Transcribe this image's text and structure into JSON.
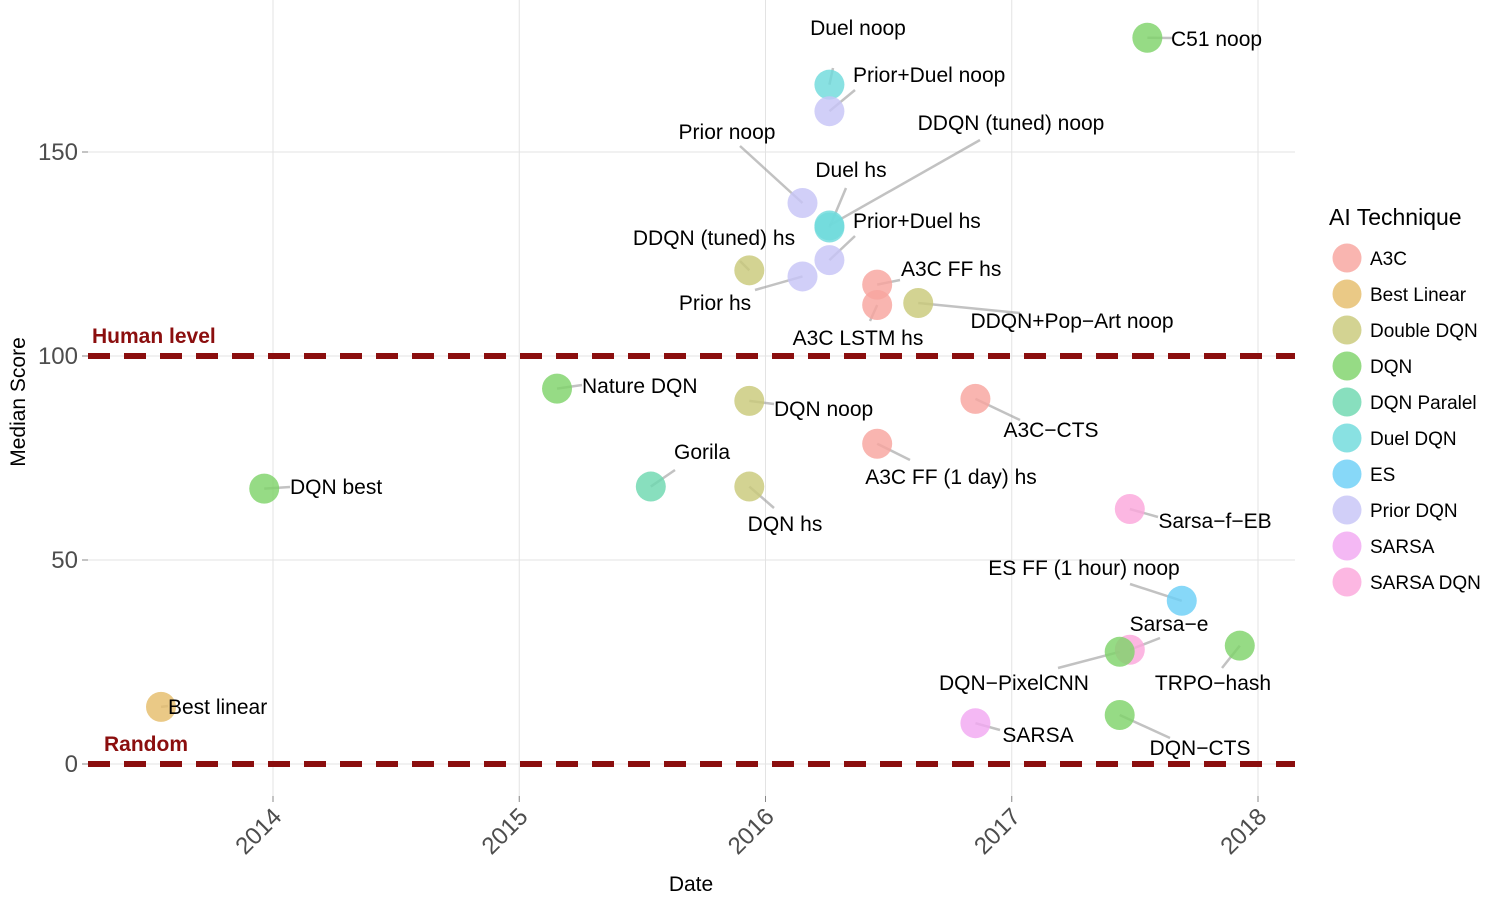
{
  "chart_data": {
    "type": "scatter",
    "xlabel": "Date",
    "ylabel": "Median Score",
    "x_ticks": [
      "2014",
      "2015",
      "2016",
      "2017",
      "2018"
    ],
    "y_ticks": [
      0,
      50,
      100,
      150
    ],
    "ylim": [
      -8,
      178
    ],
    "xlim": [
      "2013-04-15",
      "2018-03-01"
    ],
    "grid": true,
    "legend_title": "AI Technique",
    "legend_position": "right",
    "legend": [
      {
        "name": "A3C",
        "color": "#f8a59f"
      },
      {
        "name": "Best Linear",
        "color": "#e5bd6b"
      },
      {
        "name": "Double DQN",
        "color": "#c9c97a"
      },
      {
        "name": "DQN",
        "color": "#7fd36a"
      },
      {
        "name": "DQN Paralel",
        "color": "#6ed8b0"
      },
      {
        "name": "Duel DQN",
        "color": "#6fdadc"
      },
      {
        "name": "ES",
        "color": "#6ccff6"
      },
      {
        "name": "Prior DQN",
        "color": "#c7c4f7"
      },
      {
        "name": "SARSA",
        "color": "#f2a8f2"
      },
      {
        "name": "SARSA DQN",
        "color": "#fba7dc"
      }
    ],
    "reference_lines": [
      {
        "label": "Human level",
        "y": 100,
        "color": "#8b0e0e"
      },
      {
        "label": "Random",
        "y": 0,
        "color": "#8b0e0e"
      }
    ],
    "points": [
      {
        "label": "Best linear",
        "technique": "Best Linear",
        "date": "2013-07-19",
        "score": 14
      },
      {
        "label": "DQN best",
        "technique": "DQN",
        "date": "2013-12-19",
        "score": 67.5
      },
      {
        "label": "Nature DQN",
        "technique": "DQN",
        "date": "2015-02-26",
        "score": 92
      },
      {
        "label": "Gorila",
        "technique": "DQN Paralel",
        "date": "2015-07-15",
        "score": 68
      },
      {
        "label": "DQN noop",
        "technique": "Double DQN",
        "date": "2015-12-08",
        "score": 89
      },
      {
        "label": "DQN hs",
        "technique": "Double DQN",
        "date": "2015-12-08",
        "score": 68
      },
      {
        "label": "DDQN (tuned) hs",
        "technique": "Double DQN",
        "date": "2015-12-08",
        "score": 121
      },
      {
        "label": "Prior noop",
        "technique": "Prior DQN",
        "date": "2016-02-25",
        "score": 137.5
      },
      {
        "label": "Prior hs",
        "technique": "Prior DQN",
        "date": "2016-02-25",
        "score": 119.5
      },
      {
        "label": "Duel noop",
        "technique": "Duel DQN",
        "date": "2016-04-05",
        "score": 166.5
      },
      {
        "label": "Prior+Duel noop",
        "technique": "Prior DQN",
        "date": "2016-04-05",
        "score": 160
      },
      {
        "label": "DDQN (tuned) noop",
        "technique": "Duel DQN",
        "date": "2016-04-05",
        "score": 132
      },
      {
        "label": "Duel hs",
        "technique": "Duel DQN",
        "date": "2016-04-05",
        "score": 131.5
      },
      {
        "label": "Prior+Duel hs",
        "technique": "Prior DQN",
        "date": "2016-04-05",
        "score": 123.5
      },
      {
        "label": "A3C FF hs",
        "technique": "A3C",
        "date": "2016-06-15",
        "score": 117.5
      },
      {
        "label": "A3C LSTM hs",
        "technique": "A3C",
        "date": "2016-06-15",
        "score": 112.5
      },
      {
        "label": "A3C FF (1 day) hs",
        "technique": "A3C",
        "date": "2016-06-15",
        "score": 78.5
      },
      {
        "label": "DDQN+Pop−Art noop",
        "technique": "Double DQN",
        "date": "2016-08-15",
        "score": 113
      },
      {
        "label": "A3C−CTS",
        "technique": "A3C",
        "date": "2016-11-08",
        "score": 89.5
      },
      {
        "label": "SARSA",
        "technique": "SARSA",
        "date": "2016-11-08",
        "score": 10
      },
      {
        "label": "C51 noop",
        "technique": "DQN",
        "date": "2017-07-21",
        "score": 178
      },
      {
        "label": "Sarsa−f−EB",
        "technique": "SARSA DQN",
        "date": "2017-06-25",
        "score": 62.5
      },
      {
        "label": "ES FF (1 hour) noop",
        "technique": "ES",
        "date": "2017-09-10",
        "score": 40
      },
      {
        "label": "Sarsa−e",
        "technique": "SARSA DQN",
        "date": "2017-06-25",
        "score": 28
      },
      {
        "label": "DQN−PixelCNN",
        "technique": "DQN",
        "date": "2017-06-10",
        "score": 27.5
      },
      {
        "label": "TRPO−hash",
        "technique": "DQN",
        "date": "2017-12-05",
        "score": 29
      },
      {
        "label": "DQN−CTS",
        "technique": "DQN",
        "date": "2017-06-10",
        "score": 12
      }
    ]
  }
}
